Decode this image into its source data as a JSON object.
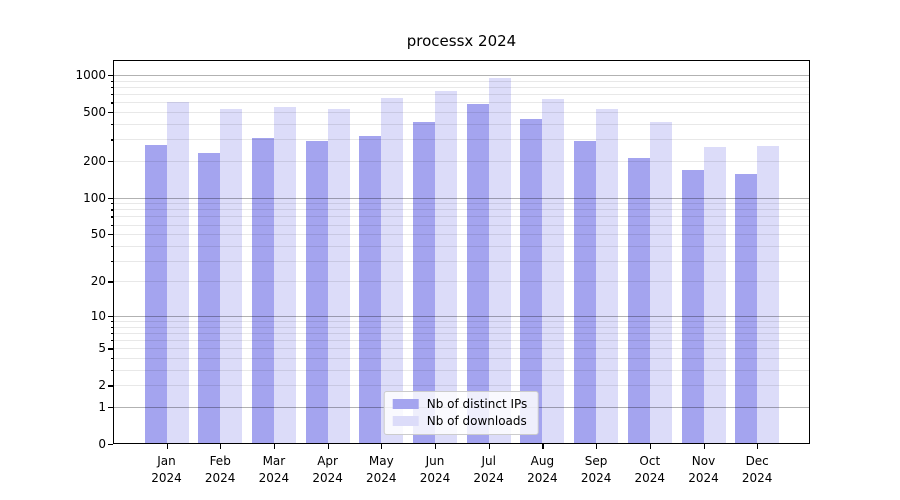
{
  "title": "processx 2024",
  "chart_data": {
    "type": "bar",
    "title": "processx 2024",
    "yscale": "log1p",
    "ylim": [
      0,
      1330
    ],
    "yticks": [
      0,
      1,
      2,
      5,
      10,
      20,
      50,
      100,
      200,
      500,
      1000
    ],
    "major_grid_values": [
      1,
      10,
      100,
      1000
    ],
    "grid": "horizontal minor+major, drawn over bars",
    "x_tick_year": "2024",
    "categories": [
      "Jan",
      "Feb",
      "Mar",
      "Apr",
      "May",
      "Jun",
      "Jul",
      "Aug",
      "Sep",
      "Oct",
      "Nov",
      "Dec"
    ],
    "series": [
      {
        "name": "Nb of distinct IPs",
        "color": "#a4a4ef",
        "values": [
          269,
          234,
          306,
          289,
          317,
          413,
          578,
          437,
          290,
          210,
          167,
          156
        ]
      },
      {
        "name": "Nb of downloads",
        "color": "#dcdcf9",
        "values": [
          600,
          530,
          555,
          530,
          647,
          748,
          953,
          635,
          527,
          413,
          260,
          266
        ]
      }
    ],
    "legend_position": "lower center",
    "axis_color": "#000000",
    "background_color": "#ffffff"
  }
}
